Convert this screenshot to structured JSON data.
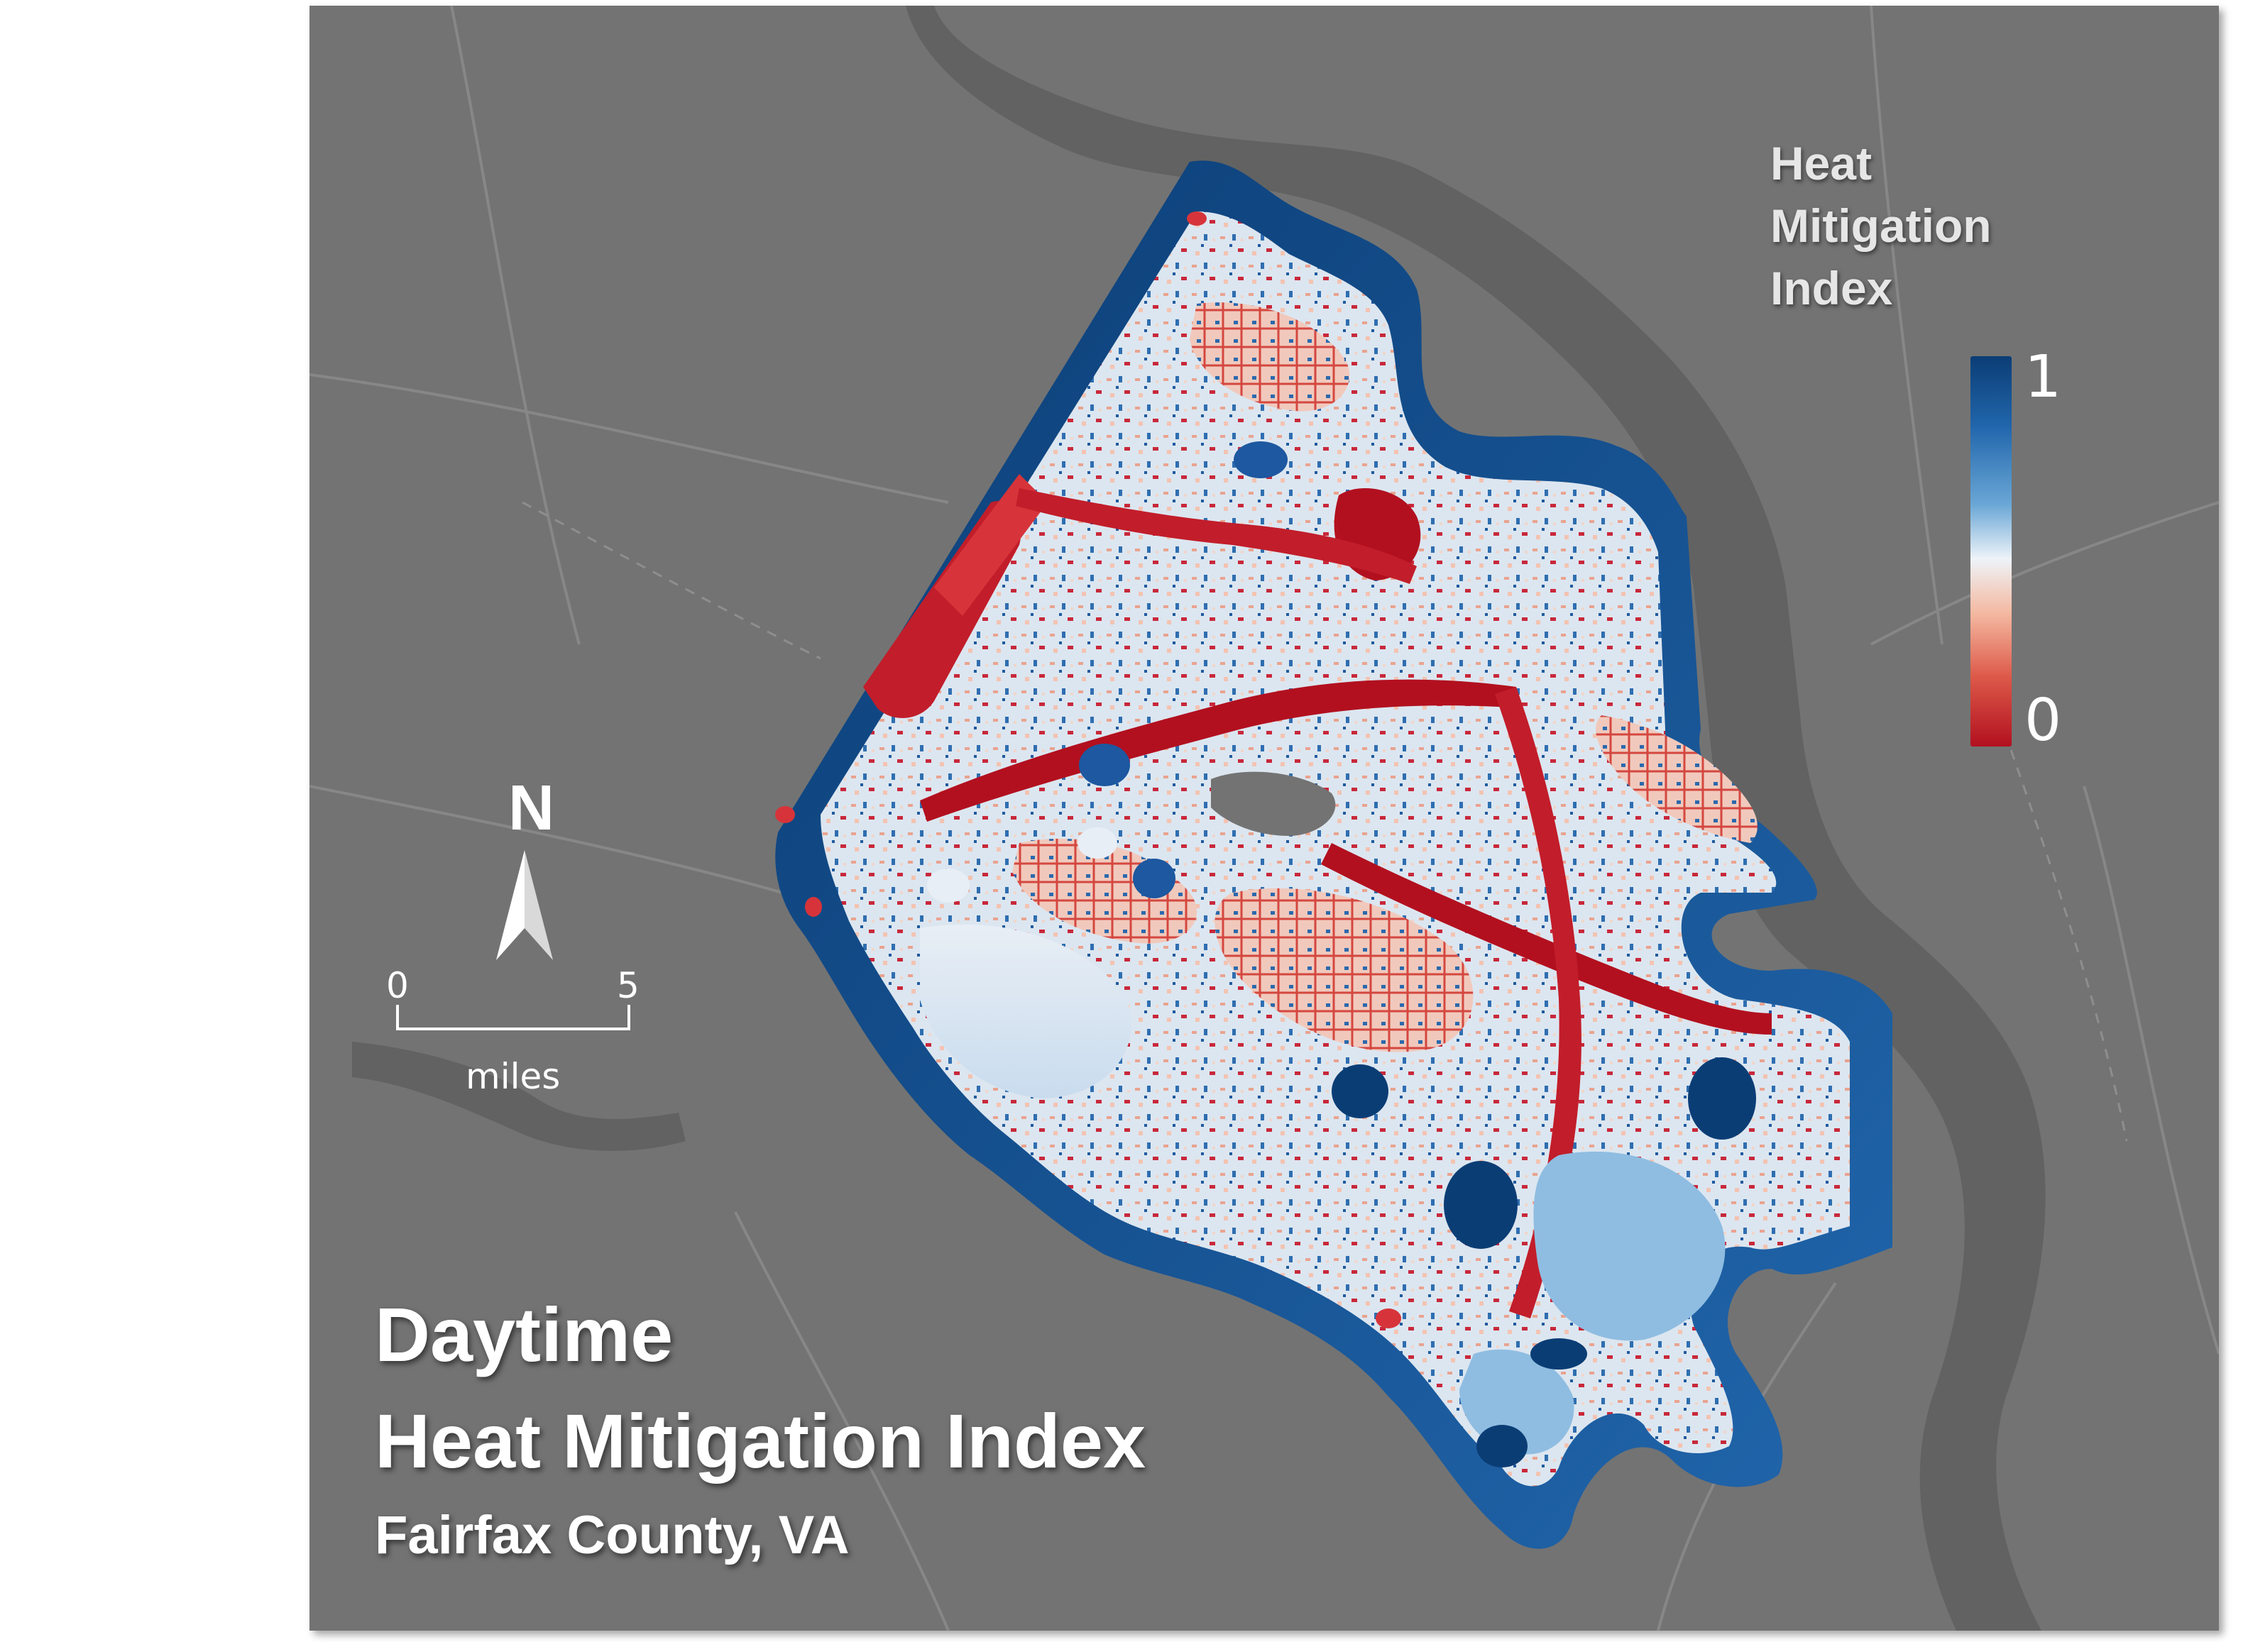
{
  "title": {
    "line1": "Daytime",
    "line2": "Heat Mitigation Index",
    "subtitle": "Fairfax County, VA"
  },
  "legend": {
    "title_lines": [
      "Heat",
      "Mitigation",
      "Index"
    ],
    "max_label": "1",
    "min_label": "0",
    "colors": {
      "high": "#0b3d75",
      "mid_high": "#2166ac",
      "mid": "#eef3f8",
      "mid_low": "#dd5a4a",
      "low": "#b2101f"
    }
  },
  "north_arrow": {
    "label": "N",
    "icon": "north-arrow-icon"
  },
  "scale_bar": {
    "start": "0",
    "end": "5",
    "unit": "miles"
  },
  "colors": {
    "basemap": "#737373",
    "water": "#5f5f5f",
    "road": "#8a8a8a",
    "text": "#ffffff"
  }
}
